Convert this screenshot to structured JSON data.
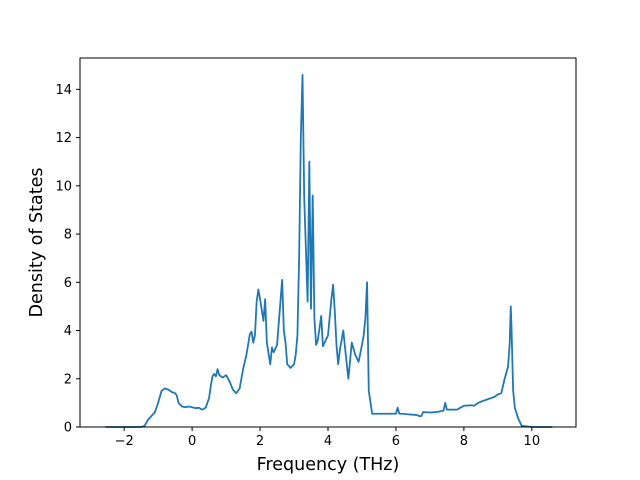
{
  "chart_data": {
    "type": "line",
    "title": "",
    "xlabel": "Frequency (THz)",
    "ylabel": "Density of States",
    "xlim": [
      -3.3,
      11.3
    ],
    "ylim": [
      0,
      15.3
    ],
    "xticks": [
      -2,
      0,
      2,
      4,
      6,
      8,
      10
    ],
    "yticks": [
      0,
      2,
      4,
      6,
      8,
      10,
      12,
      14
    ],
    "xtick_labels": [
      "−2",
      "0",
      "2",
      "4",
      "6",
      "8",
      "10"
    ],
    "ytick_labels": [
      "0",
      "2",
      "4",
      "6",
      "8",
      "10",
      "12",
      "14"
    ],
    "grid": false,
    "legend": "none",
    "series": [
      {
        "color": "#1f77b4",
        "x": [
          -2.55,
          -1.5,
          -1.4,
          -1.3,
          -1.2,
          -1.1,
          -1.0,
          -0.9,
          -0.8,
          -0.7,
          -0.6,
          -0.5,
          -0.45,
          -0.4,
          -0.3,
          -0.2,
          -0.1,
          0.0,
          0.1,
          0.2,
          0.25,
          0.3,
          0.4,
          0.5,
          0.55,
          0.6,
          0.65,
          0.7,
          0.75,
          0.8,
          0.85,
          0.9,
          1.0,
          1.1,
          1.2,
          1.3,
          1.4,
          1.5,
          1.6,
          1.7,
          1.75,
          1.8,
          1.85,
          1.9,
          1.95,
          2.0,
          2.1,
          2.15,
          2.2,
          2.3,
          2.35,
          2.4,
          2.5,
          2.6,
          2.65,
          2.7,
          2.75,
          2.8,
          2.9,
          3.0,
          3.05,
          3.1,
          3.15,
          3.2,
          3.25,
          3.3,
          3.4,
          3.45,
          3.5,
          3.55,
          3.6,
          3.65,
          3.7,
          3.8,
          3.85,
          3.9,
          4.0,
          4.1,
          4.15,
          4.2,
          4.25,
          4.3,
          4.35,
          4.4,
          4.45,
          4.5,
          4.6,
          4.7,
          4.8,
          4.9,
          5.0,
          5.05,
          5.1,
          5.15,
          5.2,
          5.3,
          5.5,
          5.7,
          5.9,
          6.0,
          6.05,
          6.1,
          6.2,
          6.4,
          6.6,
          6.7,
          6.75,
          6.8,
          7.0,
          7.2,
          7.4,
          7.45,
          7.5,
          7.6,
          7.8,
          7.9,
          8.0,
          8.2,
          8.3,
          8.4,
          8.5,
          8.6,
          8.7,
          8.8,
          8.9,
          9.0,
          9.1,
          9.2,
          9.3,
          9.35,
          9.38,
          9.4,
          9.45,
          9.5,
          9.6,
          9.7,
          10.0,
          10.6
        ],
        "y": [
          0.0,
          0.0,
          0.05,
          0.3,
          0.45,
          0.6,
          1.0,
          1.5,
          1.6,
          1.55,
          1.45,
          1.4,
          1.3,
          1.0,
          0.85,
          0.82,
          0.85,
          0.82,
          0.78,
          0.8,
          0.75,
          0.72,
          0.8,
          1.2,
          1.7,
          2.1,
          2.2,
          2.1,
          2.4,
          2.15,
          2.1,
          2.05,
          2.15,
          1.9,
          1.55,
          1.4,
          1.6,
          2.4,
          3.0,
          3.85,
          3.95,
          3.5,
          3.8,
          5.2,
          5.7,
          5.3,
          4.4,
          5.3,
          3.5,
          2.6,
          3.3,
          3.1,
          3.4,
          5.2,
          6.1,
          4.0,
          3.5,
          2.6,
          2.45,
          2.6,
          3.0,
          3.8,
          7.0,
          12.0,
          14.6,
          9.5,
          5.2,
          11.0,
          4.9,
          9.6,
          4.5,
          3.4,
          3.6,
          4.6,
          3.35,
          3.5,
          3.8,
          5.3,
          5.9,
          4.8,
          3.4,
          2.6,
          3.2,
          3.6,
          4.0,
          3.3,
          2.0,
          3.5,
          3.0,
          2.7,
          3.4,
          3.8,
          4.5,
          6.0,
          1.5,
          0.55,
          0.55,
          0.55,
          0.55,
          0.55,
          0.8,
          0.55,
          0.55,
          0.52,
          0.5,
          0.45,
          0.45,
          0.62,
          0.6,
          0.62,
          0.68,
          1.0,
          0.72,
          0.72,
          0.72,
          0.8,
          0.88,
          0.9,
          0.88,
          0.98,
          1.05,
          1.1,
          1.15,
          1.2,
          1.25,
          1.35,
          1.4,
          2.0,
          2.5,
          3.5,
          5.0,
          4.2,
          1.5,
          0.8,
          0.35,
          0.05,
          0.0,
          0.0
        ]
      }
    ]
  }
}
